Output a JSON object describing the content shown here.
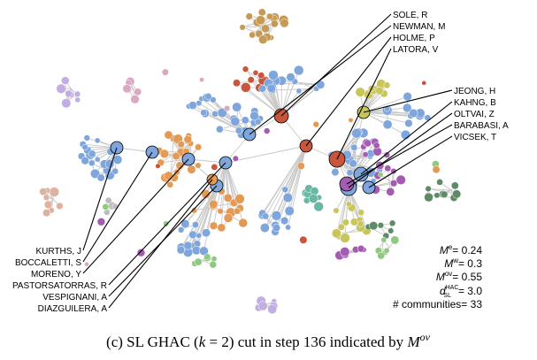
{
  "network": {
    "colors": {
      "blue": "#7ea6dc",
      "orange": "#e39a55",
      "purple": "#a35cb2",
      "olive": "#c8c65a",
      "brown": "#c49a54",
      "red": "#c9563c",
      "pink": "#d9a9c4",
      "lavender": "#c2aee0",
      "salmon": "#dfb2a0",
      "green": "#8fc97e",
      "dkgreen": "#5e8a66",
      "gray": "#bdbdbd",
      "teal": "#6cb6a4",
      "edge": "#c8c8c8"
    }
  },
  "author_labels_right": [
    "SOLE, R",
    "NEWMAN, M",
    "HOLME, P",
    "LATORA, V",
    "JEONG, H",
    "KAHNG, B",
    "OLTVAI, Z",
    "BARABASI, A",
    "VICSEK, T"
  ],
  "author_labels_left": [
    "KURTHS, J",
    "BOCCALETTI, S",
    "MORENO, Y",
    "PASTORSATORRAS, R",
    "VESPIGNANI, A",
    "DIAZGUILERA, A"
  ],
  "stats": {
    "me": "M^e= 0.24",
    "mw": "M^w= 0.3",
    "mov": "M^ov= 0.55",
    "dsl": "d_SL^HAC= 3.0",
    "communities": "# communities= 33"
  },
  "caption": "(c) SL GHAC (k = 2) cut in step 136 indicated by M^ov"
}
